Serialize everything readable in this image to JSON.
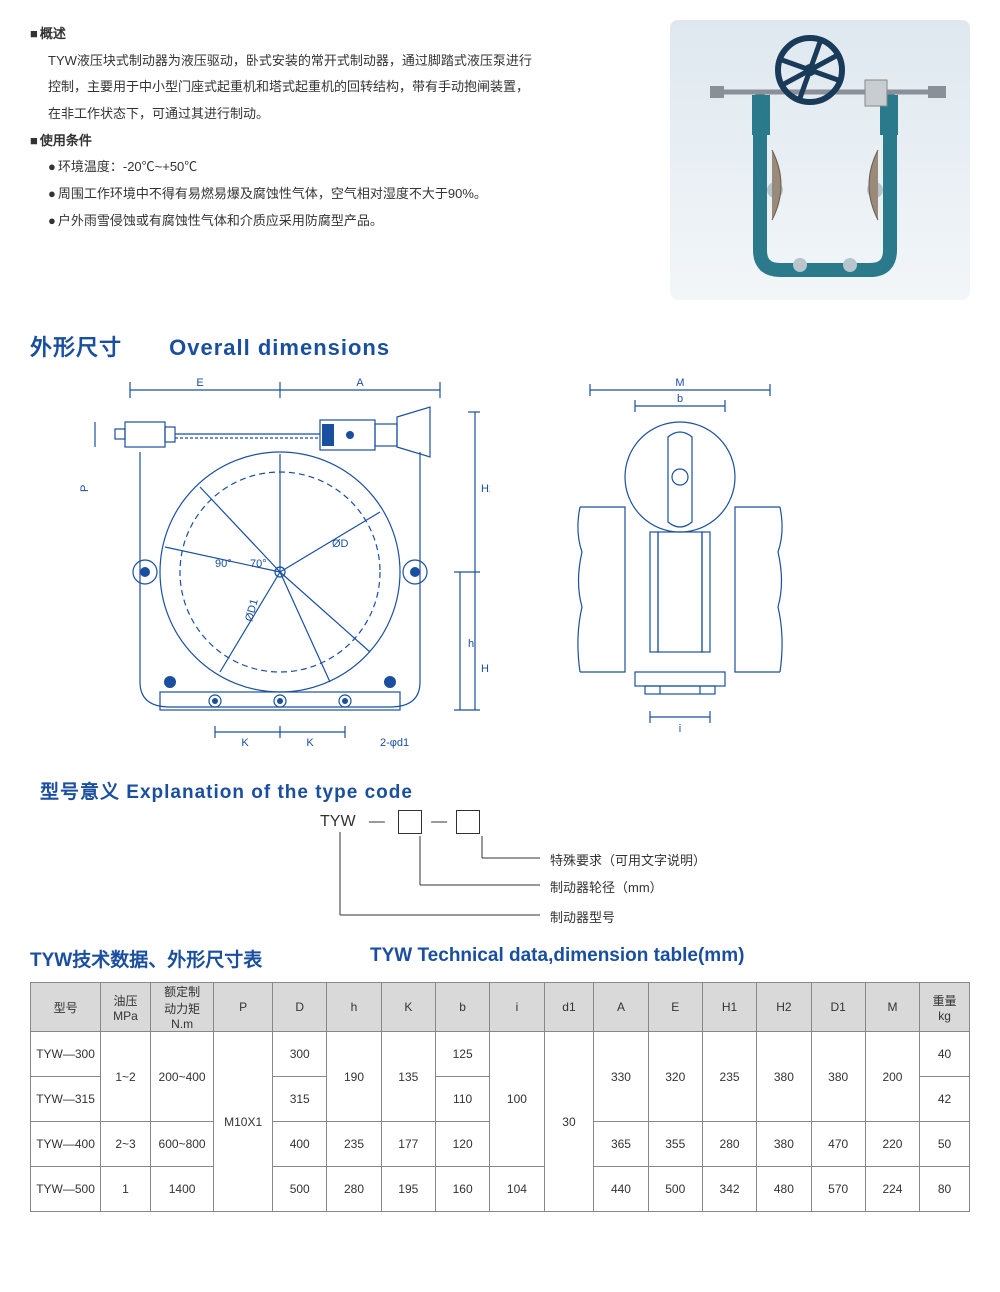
{
  "overview": {
    "heading": "概述",
    "body1": "TYW液压块式制动器为液压驱动，卧式安装的常开式制动器，通过脚踏式液压泵进行",
    "body2": "控制，主要用于中小型门座式起重机和塔式起重机的回转结构，带有手动抱闸装置，",
    "body3": "在非工作状态下，可通过其进行制动。"
  },
  "conditions": {
    "heading": "使用条件",
    "item1": "环境温度：-20℃~+50℃",
    "item2": "周围工作环境中不得有易燃易爆及腐蚀性气体，空气相对湿度不大于90%。",
    "item3": "户外雨雪侵蚀或有腐蚀性气体和介质应采用防腐型产品。"
  },
  "dimensions": {
    "title_cn": "外形尺寸",
    "title_en": "Overall dimensions",
    "front_view": {
      "labels": {
        "E": "E",
        "A": "A",
        "K": "K",
        "ang90": "90°",
        "ang70": "70°",
        "phiD": "ØD",
        "phiD1": "ØD1",
        "h": "h",
        "H1": "H1",
        "H2": "H2",
        "P": "P",
        "holes": "2-φd1"
      }
    },
    "side_view": {
      "labels": {
        "M": "M",
        "b": "b",
        "i": "i"
      }
    },
    "stroke_color": "#1a4fa0"
  },
  "type_code": {
    "title": "型号意义 Explanation of the type code",
    "prefix": "TYW",
    "dash": "—",
    "note1": "特殊要求（可用文字说明）",
    "note2": "制动器轮径（mm）",
    "note3": "制动器型号"
  },
  "data_table": {
    "title_cn": "TYW技术数据、外形尺寸表",
    "title_en": "TYW Technical data,dimension table(mm)",
    "columns": [
      "型号",
      "油压\nMPa",
      "额定制\n动力矩\nN.m",
      "P",
      "D",
      "h",
      "K",
      "b",
      "i",
      "d1",
      "A",
      "E",
      "H1",
      "H2",
      "D1",
      "M",
      "重量\nkg"
    ],
    "rows": [
      {
        "model": "TYW—300",
        "mpa": "1~2",
        "torque": "200~400",
        "P": "M10X1",
        "D": "300",
        "h": "190",
        "K": "135",
        "b": "125",
        "i": "100",
        "d1": "30",
        "A": "330",
        "E": "320",
        "H1": "235",
        "H2": "380",
        "D1": "380",
        "M": "200",
        "kg": "40"
      },
      {
        "model": "TYW—315",
        "mpa": "1~2",
        "torque": "200~400",
        "P": "M10X1",
        "D": "315",
        "h": "190",
        "K": "135",
        "b": "110",
        "i": "100",
        "d1": "30",
        "A": "330",
        "E": "320",
        "H1": "235",
        "H2": "380",
        "D1": "380",
        "M": "200",
        "kg": "42"
      },
      {
        "model": "TYW—400",
        "mpa": "2~3",
        "torque": "600~800",
        "P": "M10X1",
        "D": "400",
        "h": "235",
        "K": "177",
        "b": "120",
        "i": "100",
        "d1": "30",
        "A": "365",
        "E": "355",
        "H1": "280",
        "H2": "380",
        "D1": "470",
        "M": "220",
        "kg": "50"
      },
      {
        "model": "TYW—500",
        "mpa": "1",
        "torque": "1400",
        "P": "M10X1",
        "D": "500",
        "h": "280",
        "K": "195",
        "b": "160",
        "i": "104",
        "d1": "30",
        "A": "440",
        "E": "500",
        "H1": "342",
        "H2": "480",
        "D1": "570",
        "M": "224",
        "kg": "80"
      }
    ],
    "header_bg": "#d9d9d9",
    "border_color": "#888888"
  },
  "photo": {
    "body_color": "#2a7a8c",
    "wheel_color": "#1a3a5a",
    "pad_color": "#9a8a7a"
  }
}
